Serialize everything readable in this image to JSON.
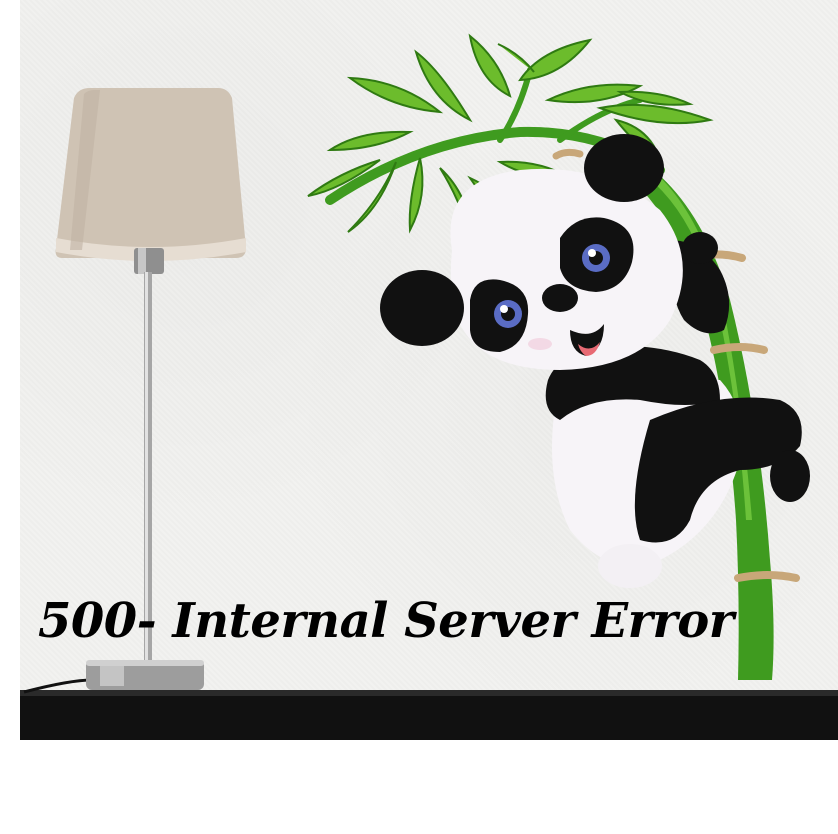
{
  "error": {
    "title": "500- Internal Server Error"
  },
  "illustration": {
    "icons": [
      "table-lamp-icon",
      "panda-icon",
      "bamboo-icon",
      "shelf-icon"
    ],
    "colors": {
      "wall": "#efefed",
      "shelf": "#111111",
      "lamp_shade": "#cfc3b4",
      "lamp_metal": "#b9b9b9",
      "bamboo_green": "#3f9b1f",
      "leaf_green": "#6cbc2c",
      "panda_black": "#111111",
      "panda_eye": "#5a6cc4",
      "panda_tongue": "#e86a74"
    }
  }
}
